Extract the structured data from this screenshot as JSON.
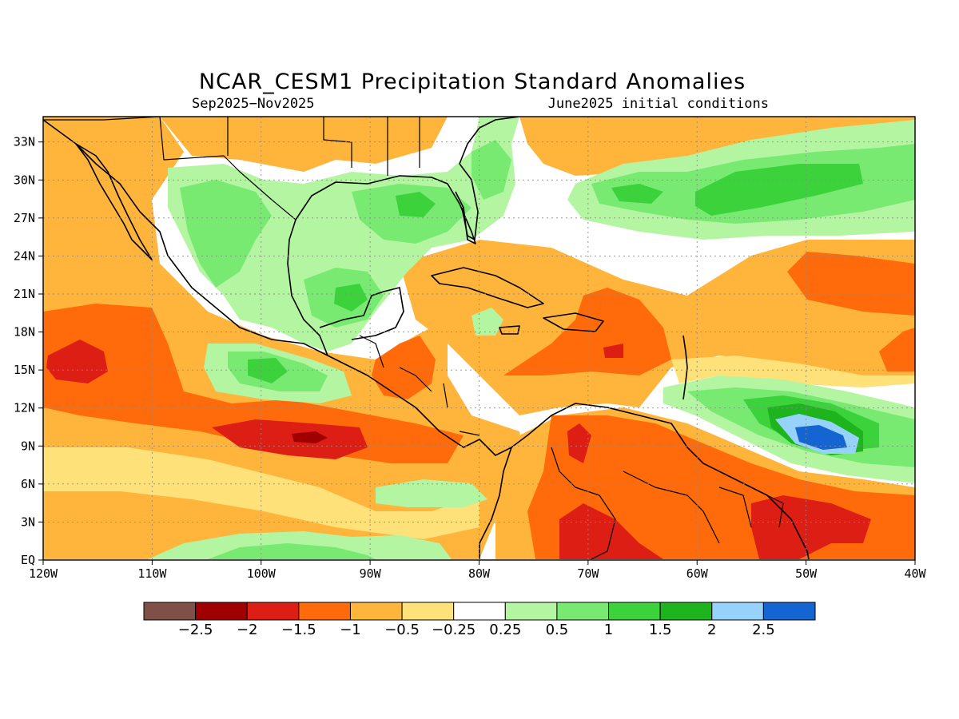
{
  "title": "NCAR_CESM1 Precipitation Standard Anomalies",
  "subtitle_left": "Sep2025−Nov2025",
  "subtitle_right": "June2025 initial conditions",
  "map": {
    "lon_range": [
      -120,
      -40
    ],
    "lat_range": [
      0,
      35
    ],
    "lon_ticks": [
      {
        "lon": -120,
        "label": "120W"
      },
      {
        "lon": -110,
        "label": "110W"
      },
      {
        "lon": -100,
        "label": "100W"
      },
      {
        "lon": -90,
        "label": "90W"
      },
      {
        "lon": -80,
        "label": "80W"
      },
      {
        "lon": -70,
        "label": "70W"
      },
      {
        "lon": -60,
        "label": "60W"
      },
      {
        "lon": -50,
        "label": "50W"
      },
      {
        "lon": -40,
        "label": "40W"
      }
    ],
    "lat_ticks": [
      {
        "lat": 0,
        "label": "EQ"
      },
      {
        "lat": 3,
        "label": "3N"
      },
      {
        "lat": 6,
        "label": "6N"
      },
      {
        "lat": 9,
        "label": "9N"
      },
      {
        "lat": 12,
        "label": "12N"
      },
      {
        "lat": 15,
        "label": "15N"
      },
      {
        "lat": 18,
        "label": "18N"
      },
      {
        "lat": 21,
        "label": "21N"
      },
      {
        "lat": 24,
        "label": "24N"
      },
      {
        "lat": 27,
        "label": "27N"
      },
      {
        "lat": 30,
        "label": "30N"
      },
      {
        "lat": 33,
        "label": "33N"
      }
    ],
    "grid": true
  },
  "colorbar": {
    "colors": [
      "#7f5048",
      "#a00000",
      "#dc1e14",
      "#ff6a0a",
      "#ffb43c",
      "#ffe17a",
      "#ffffff",
      "#b4f5a2",
      "#78ea72",
      "#3cd23c",
      "#1eb41e",
      "#96d2fa",
      "#1464d2"
    ],
    "labels": [
      "−2.5",
      "−2",
      "−1.5",
      "−1",
      "−0.5",
      "−0.25",
      "0.25",
      "0.5",
      "1",
      "1.5",
      "2",
      "2.5"
    ]
  }
}
